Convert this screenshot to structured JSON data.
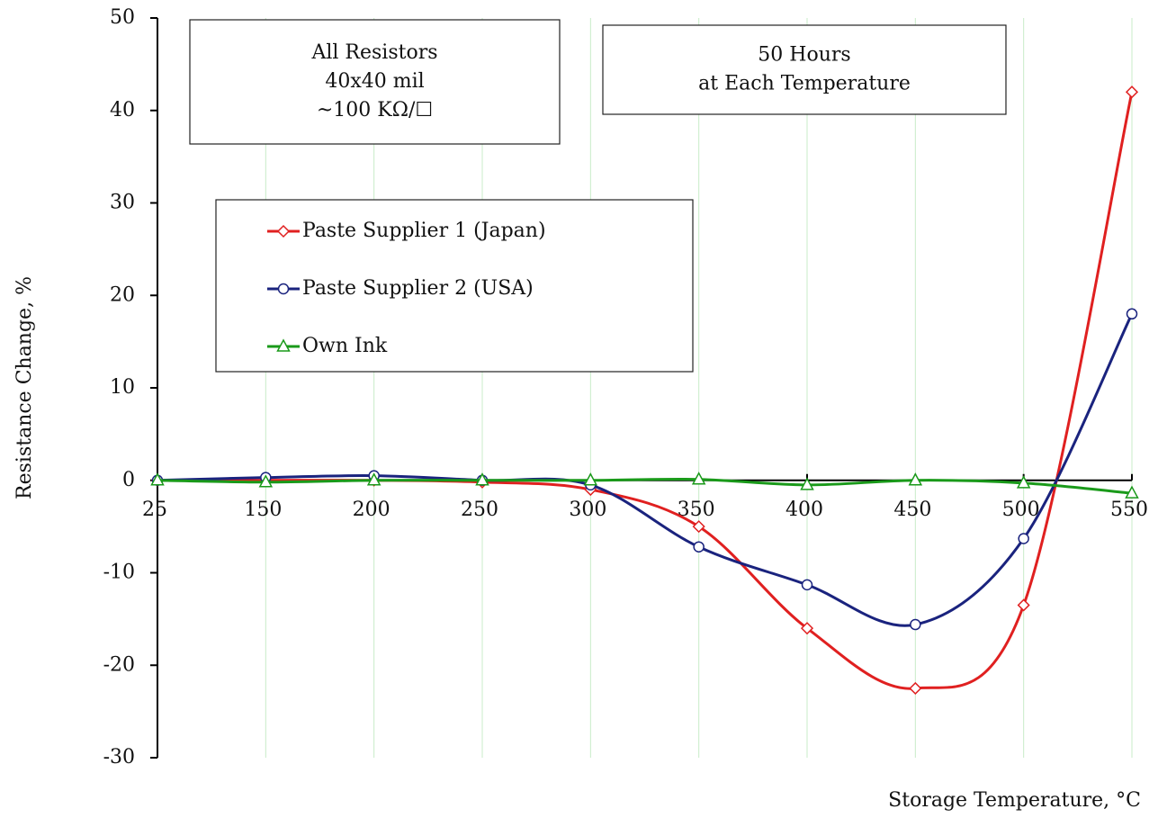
{
  "chart_data": {
    "type": "line",
    "smooth": true,
    "y_label": "Resistance Change, %",
    "x_label": "Storage Temperature, °C",
    "annotations": [
      {
        "lines": [
          "All Resistors",
          "40x40 mil",
          "~100 KΩ/☐"
        ]
      },
      {
        "lines": [
          "50 Hours",
          "at Each Temperature"
        ]
      }
    ],
    "categories": [
      "25",
      "150",
      "200",
      "250",
      "300",
      "350",
      "400",
      "450",
      "500",
      "550"
    ],
    "series": [
      {
        "name": "Paste Supplier 1 (Japan)",
        "color": "#e02020",
        "marker": "diamond",
        "values": [
          0,
          0,
          0,
          -0.2,
          -1,
          -5,
          -16,
          -22.5,
          -13.5,
          42
        ]
      },
      {
        "name": "Paste Supplier 2 (USA)",
        "color": "#1a237e",
        "marker": "circle",
        "values": [
          0,
          0.3,
          0.5,
          0,
          -0.5,
          -7.2,
          -11.3,
          -15.6,
          -6.3,
          18
        ]
      },
      {
        "name": "Own Ink",
        "color": "#1a9a1a",
        "marker": "triangle",
        "values": [
          0,
          -0.2,
          0,
          0,
          0,
          0.1,
          -0.5,
          0,
          -0.3,
          -1.4
        ]
      }
    ],
    "ylim": [
      -30,
      50
    ],
    "yticks": [
      -30,
      -20,
      -10,
      0,
      10,
      20,
      30,
      40,
      50
    ],
    "grid": "x"
  }
}
